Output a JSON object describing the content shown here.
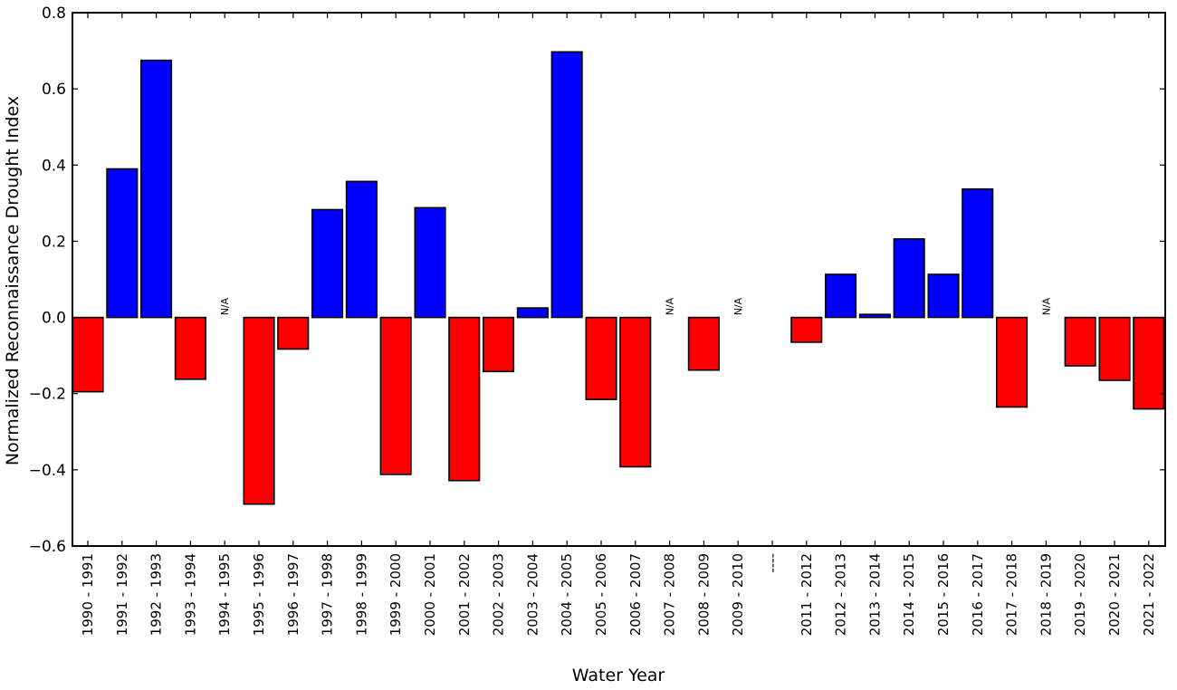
{
  "chart_data": {
    "type": "bar",
    "xlabel": "Water Year",
    "ylabel": "Normalized Reconnaissance Drought Index",
    "ylim": [
      -0.6,
      0.8
    ],
    "yticks": [
      {
        "value": -0.6,
        "label": "−0.6"
      },
      {
        "value": -0.4,
        "label": "−0.4"
      },
      {
        "value": -0.2,
        "label": "−0.2"
      },
      {
        "value": 0.0,
        "label": "0.0"
      },
      {
        "value": 0.2,
        "label": "0.2"
      },
      {
        "value": 0.4,
        "label": "0.4"
      },
      {
        "value": 0.6,
        "label": "0.6"
      },
      {
        "value": 0.8,
        "label": "0.8"
      }
    ],
    "categories": [
      "1990 - 1991",
      "1991 - 1992",
      "1992 - 1993",
      "1993 - 1994",
      "1994 - 1995",
      "1995 - 1996",
      "1996 - 1997",
      "1997 - 1998",
      "1998 - 1999",
      "1999 - 2000",
      "2000 - 2001",
      "2001 - 2002",
      "2002 - 2003",
      "2003 - 2004",
      "2004 - 2005",
      "2005 - 2006",
      "2006 - 2007",
      "2007 - 2008",
      "2008 - 2009",
      "2009 - 2010",
      "----",
      "2011 - 2012",
      "2012 - 2013",
      "2013 - 2014",
      "2014 - 2015",
      "2015 - 2016",
      "2016 - 2017",
      "2017 - 2018",
      "2018 - 2019",
      "2019 - 2020",
      "2020 - 2021",
      "2021 - 2022"
    ],
    "values": [
      -0.195,
      0.39,
      0.675,
      -0.162,
      null,
      -0.49,
      -0.083,
      0.283,
      0.357,
      -0.412,
      0.288,
      -0.428,
      -0.142,
      0.025,
      0.697,
      -0.215,
      -0.392,
      null,
      -0.138,
      null,
      null,
      -0.065,
      0.113,
      0.008,
      0.206,
      0.113,
      0.337,
      -0.235,
      null,
      -0.127,
      -0.165,
      -0.24
    ],
    "missing_label": "N/A",
    "positive_color": "#0000ff",
    "negative_color": "#ff0000",
    "legend": "none",
    "grid": false
  }
}
